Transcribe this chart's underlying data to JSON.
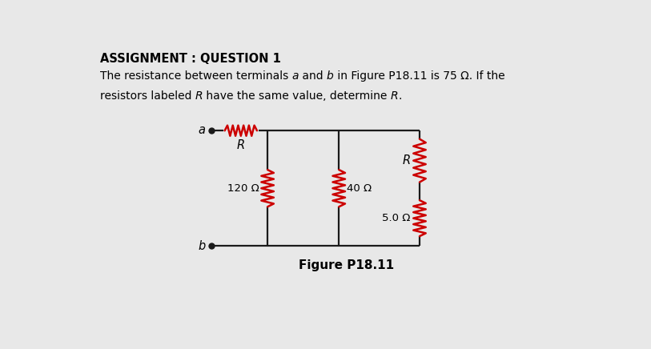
{
  "bg_color": "#e8e8e8",
  "title": "ASSIGNMENT : QUESTION 1",
  "title_fontsize": 10.5,
  "caption": "Figure P18.11",
  "caption_fontsize": 11,
  "text_fontsize": 10,
  "resistor_color_red": "#cc0000",
  "wire_color": "#1a1a1a",
  "label_120": "120 Ω",
  "label_40": "40 Ω",
  "label_50": "5.0 Ω",
  "label_R_top": "R",
  "label_R_horiz": "R"
}
